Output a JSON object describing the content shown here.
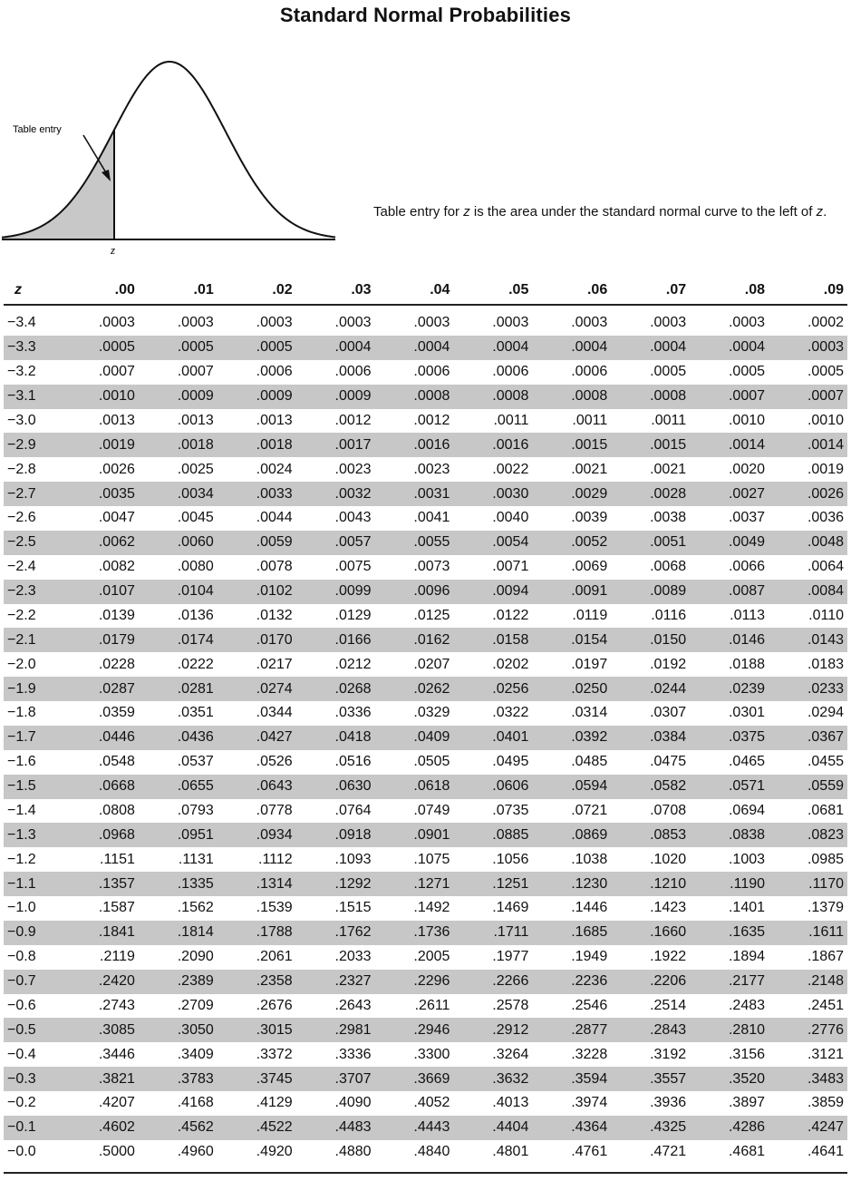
{
  "title": "Standard Normal Probabilities",
  "figure": {
    "table_entry_label": "Table entry",
    "z_label": "z",
    "shade_color": "#c8c8c8"
  },
  "caption": {
    "part1": "Table entry for",
    "z": "z",
    "part2": "is the area under the standard normal curve to the left of",
    "z2": "z",
    "end": "."
  },
  "table": {
    "headers": [
      "z",
      ".00",
      ".01",
      ".02",
      ".03",
      ".04",
      ".05",
      ".06",
      ".07",
      ".08",
      ".09"
    ],
    "rows": [
      [
        "−3.4",
        ".0003",
        ".0003",
        ".0003",
        ".0003",
        ".0003",
        ".0003",
        ".0003",
        ".0003",
        ".0003",
        ".0002"
      ],
      [
        "−3.3",
        ".0005",
        ".0005",
        ".0005",
        ".0004",
        ".0004",
        ".0004",
        ".0004",
        ".0004",
        ".0004",
        ".0003"
      ],
      [
        "−3.2",
        ".0007",
        ".0007",
        ".0006",
        ".0006",
        ".0006",
        ".0006",
        ".0006",
        ".0005",
        ".0005",
        ".0005"
      ],
      [
        "−3.1",
        ".0010",
        ".0009",
        ".0009",
        ".0009",
        ".0008",
        ".0008",
        ".0008",
        ".0008",
        ".0007",
        ".0007"
      ],
      [
        "−3.0",
        ".0013",
        ".0013",
        ".0013",
        ".0012",
        ".0012",
        ".0011",
        ".0011",
        ".0011",
        ".0010",
        ".0010"
      ],
      [
        "−2.9",
        ".0019",
        ".0018",
        ".0018",
        ".0017",
        ".0016",
        ".0016",
        ".0015",
        ".0015",
        ".0014",
        ".0014"
      ],
      [
        "−2.8",
        ".0026",
        ".0025",
        ".0024",
        ".0023",
        ".0023",
        ".0022",
        ".0021",
        ".0021",
        ".0020",
        ".0019"
      ],
      [
        "−2.7",
        ".0035",
        ".0034",
        ".0033",
        ".0032",
        ".0031",
        ".0030",
        ".0029",
        ".0028",
        ".0027",
        ".0026"
      ],
      [
        "−2.6",
        ".0047",
        ".0045",
        ".0044",
        ".0043",
        ".0041",
        ".0040",
        ".0039",
        ".0038",
        ".0037",
        ".0036"
      ],
      [
        "−2.5",
        ".0062",
        ".0060",
        ".0059",
        ".0057",
        ".0055",
        ".0054",
        ".0052",
        ".0051",
        ".0049",
        ".0048"
      ],
      [
        "−2.4",
        ".0082",
        ".0080",
        ".0078",
        ".0075",
        ".0073",
        ".0071",
        ".0069",
        ".0068",
        ".0066",
        ".0064"
      ],
      [
        "−2.3",
        ".0107",
        ".0104",
        ".0102",
        ".0099",
        ".0096",
        ".0094",
        ".0091",
        ".0089",
        ".0087",
        ".0084"
      ],
      [
        "−2.2",
        ".0139",
        ".0136",
        ".0132",
        ".0129",
        ".0125",
        ".0122",
        ".0119",
        ".0116",
        ".0113",
        ".0110"
      ],
      [
        "−2.1",
        ".0179",
        ".0174",
        ".0170",
        ".0166",
        ".0162",
        ".0158",
        ".0154",
        ".0150",
        ".0146",
        ".0143"
      ],
      [
        "−2.0",
        ".0228",
        ".0222",
        ".0217",
        ".0212",
        ".0207",
        ".0202",
        ".0197",
        ".0192",
        ".0188",
        ".0183"
      ],
      [
        "−1.9",
        ".0287",
        ".0281",
        ".0274",
        ".0268",
        ".0262",
        ".0256",
        ".0250",
        ".0244",
        ".0239",
        ".0233"
      ],
      [
        "−1.8",
        ".0359",
        ".0351",
        ".0344",
        ".0336",
        ".0329",
        ".0322",
        ".0314",
        ".0307",
        ".0301",
        ".0294"
      ],
      [
        "−1.7",
        ".0446",
        ".0436",
        ".0427",
        ".0418",
        ".0409",
        ".0401",
        ".0392",
        ".0384",
        ".0375",
        ".0367"
      ],
      [
        "−1.6",
        ".0548",
        ".0537",
        ".0526",
        ".0516",
        ".0505",
        ".0495",
        ".0485",
        ".0475",
        ".0465",
        ".0455"
      ],
      [
        "−1.5",
        ".0668",
        ".0655",
        ".0643",
        ".0630",
        ".0618",
        ".0606",
        ".0594",
        ".0582",
        ".0571",
        ".0559"
      ],
      [
        "−1.4",
        ".0808",
        ".0793",
        ".0778",
        ".0764",
        ".0749",
        ".0735",
        ".0721",
        ".0708",
        ".0694",
        ".0681"
      ],
      [
        "−1.3",
        ".0968",
        ".0951",
        ".0934",
        ".0918",
        ".0901",
        ".0885",
        ".0869",
        ".0853",
        ".0838",
        ".0823"
      ],
      [
        "−1.2",
        ".1151",
        ".1131",
        ".1112",
        ".1093",
        ".1075",
        ".1056",
        ".1038",
        ".1020",
        ".1003",
        ".0985"
      ],
      [
        "−1.1",
        ".1357",
        ".1335",
        ".1314",
        ".1292",
        ".1271",
        ".1251",
        ".1230",
        ".1210",
        ".1190",
        ".1170"
      ],
      [
        "−1.0",
        ".1587",
        ".1562",
        ".1539",
        ".1515",
        ".1492",
        ".1469",
        ".1446",
        ".1423",
        ".1401",
        ".1379"
      ],
      [
        "−0.9",
        ".1841",
        ".1814",
        ".1788",
        ".1762",
        ".1736",
        ".1711",
        ".1685",
        ".1660",
        ".1635",
        ".1611"
      ],
      [
        "−0.8",
        ".2119",
        ".2090",
        ".2061",
        ".2033",
        ".2005",
        ".1977",
        ".1949",
        ".1922",
        ".1894",
        ".1867"
      ],
      [
        "−0.7",
        ".2420",
        ".2389",
        ".2358",
        ".2327",
        ".2296",
        ".2266",
        ".2236",
        ".2206",
        ".2177",
        ".2148"
      ],
      [
        "−0.6",
        ".2743",
        ".2709",
        ".2676",
        ".2643",
        ".2611",
        ".2578",
        ".2546",
        ".2514",
        ".2483",
        ".2451"
      ],
      [
        "−0.5",
        ".3085",
        ".3050",
        ".3015",
        ".2981",
        ".2946",
        ".2912",
        ".2877",
        ".2843",
        ".2810",
        ".2776"
      ],
      [
        "−0.4",
        ".3446",
        ".3409",
        ".3372",
        ".3336",
        ".3300",
        ".3264",
        ".3228",
        ".3192",
        ".3156",
        ".3121"
      ],
      [
        "−0.3",
        ".3821",
        ".3783",
        ".3745",
        ".3707",
        ".3669",
        ".3632",
        ".3594",
        ".3557",
        ".3520",
        ".3483"
      ],
      [
        "−0.2",
        ".4207",
        ".4168",
        ".4129",
        ".4090",
        ".4052",
        ".4013",
        ".3974",
        ".3936",
        ".3897",
        ".3859"
      ],
      [
        "−0.1",
        ".4602",
        ".4562",
        ".4522",
        ".4483",
        ".4443",
        ".4404",
        ".4364",
        ".4325",
        ".4286",
        ".4247"
      ],
      [
        "−0.0",
        ".5000",
        ".4960",
        ".4920",
        ".4880",
        ".4840",
        ".4801",
        ".4761",
        ".4721",
        ".4681",
        ".4641"
      ]
    ]
  }
}
